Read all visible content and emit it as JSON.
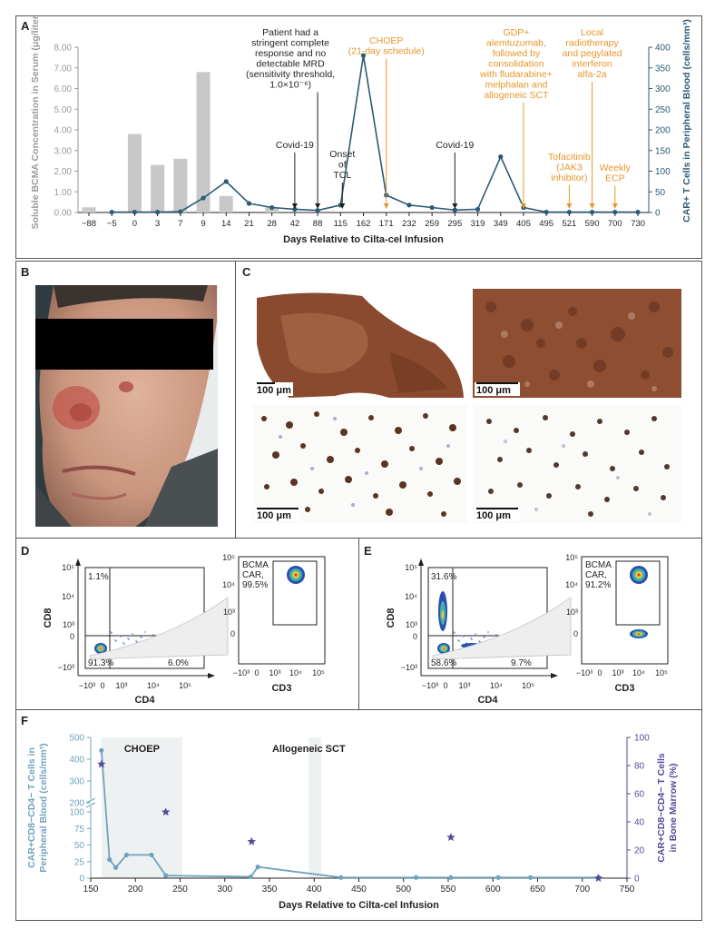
{
  "panels": {
    "A": "A",
    "B": "B",
    "C": "C",
    "D": "D",
    "E": "E",
    "F": "F"
  },
  "chart_data": [
    {
      "id": "A",
      "type": "bar+line",
      "xlabel": "Days Relative to Cilta-cel Infusion",
      "ylabel_left": "Soluble BCMA Concentration in Serum (μg/liter)",
      "ylabel_right": "CAR+ T Cells in Peripheral Blood (cells/mm³)",
      "categories": [
        "−88",
        "−5",
        "0",
        "3",
        "7",
        "9",
        "14",
        "21",
        "28",
        "42",
        "88",
        "115",
        "162",
        "171",
        "232",
        "259",
        "295",
        "319",
        "349",
        "405",
        "495",
        "521",
        "590",
        "700",
        "730"
      ],
      "ylim_left": [
        0,
        8.0
      ],
      "left_ticks": [
        "0.00",
        "1.00",
        "2.00",
        "3.00",
        "4.00",
        "5.00",
        "6.00",
        "7.00",
        "8.00"
      ],
      "ylim_right": [
        0,
        400
      ],
      "right_ticks": [
        "0",
        "50",
        "100",
        "150",
        "200",
        "250",
        "300",
        "350",
        "400"
      ],
      "series": [
        {
          "name": "Soluble BCMA",
          "kind": "bar",
          "axis": "left",
          "color": "#c8c8c8",
          "values": [
            0.25,
            null,
            3.8,
            2.3,
            2.6,
            6.8,
            0.8,
            null,
            0.25,
            null,
            null,
            null,
            null,
            null,
            null,
            null,
            null,
            null,
            null,
            null,
            null,
            null,
            null,
            null,
            null
          ]
        },
        {
          "name": "CAR+ T cells",
          "kind": "line",
          "axis": "right",
          "color": "#2b5a73",
          "values": [
            null,
            1,
            1,
            1,
            2,
            35,
            75,
            22,
            12,
            8,
            5,
            18,
            380,
            42,
            18,
            12,
            6,
            8,
            135,
            12,
            1,
            1,
            1,
            1,
            1
          ]
        }
      ],
      "annotations": [
        {
          "text": [
            "Covid-19"
          ],
          "x_cat": "42",
          "color": "#231f20"
        },
        {
          "text": [
            "Patient had a",
            "stringent complete",
            "response and no",
            "detectable MRD",
            "(sensitivity threshold,",
            "1.0×10⁻⁶)"
          ],
          "x_cat": "88",
          "color": "#231f20"
        },
        {
          "text": [
            "Onset",
            "of",
            "TCL"
          ],
          "x_cat": "115",
          "color": "#231f20"
        },
        {
          "text": [
            "CHOEP",
            "(21-day schedule)"
          ],
          "x_cat": "171",
          "color": "#e8962a"
        },
        {
          "text": [
            "Covid-19"
          ],
          "x_cat": "295",
          "color": "#231f20"
        },
        {
          "text": [
            "GDP+",
            "alemtuzumab,",
            "followed by",
            "consolidation",
            "with fludarabine+",
            "melphalan and",
            "allogeneic SCT"
          ],
          "x_cat": "405",
          "color": "#e8962a"
        },
        {
          "text": [
            "Tofacitinib",
            "(JAK3",
            "inhibitor)"
          ],
          "x_cat": "521",
          "color": "#e8962a"
        },
        {
          "text": [
            "Local",
            "radiotherapy",
            "and pegylated",
            "interferon",
            "alfa-2a"
          ],
          "x_cat": "590",
          "color": "#e8962a"
        },
        {
          "text": [
            "Weekly",
            "ECP"
          ],
          "x_cat": "700",
          "color": "#e8962a"
        }
      ]
    },
    {
      "id": "D",
      "type": "scatter",
      "plots": [
        {
          "xlabel": "CD4",
          "ylabel": "CD8",
          "quadrants": {
            "tl": "1.1%",
            "bl": "91.3%",
            "br": "6.0%"
          }
        },
        {
          "xlabel": "CD3",
          "ylabel": "",
          "gate_label": [
            "BCMA",
            "CAR,",
            "99.5%"
          ]
        }
      ]
    },
    {
      "id": "E",
      "type": "scatter",
      "plots": [
        {
          "xlabel": "CD4",
          "ylabel": "CD8",
          "quadrants": {
            "tl": "31.6%",
            "bl": "58.6%",
            "br": "9.7%"
          }
        },
        {
          "xlabel": "CD3",
          "ylabel": "",
          "gate_label": [
            "BCMA",
            "CAR,",
            "91.2%"
          ]
        }
      ]
    },
    {
      "id": "F",
      "type": "line+scatter",
      "xlabel": "Days Relative to Cilta-cel Infusion",
      "ylabel_left": "CAR+CD8−CD4− T Cells in Peripheral Blood (cells/mm³)",
      "ylabel_right": "CAR+CD8−CD4− T Cells in Bone Marrow (%)",
      "xlim": [
        150,
        750
      ],
      "x_ticks": [
        150,
        200,
        250,
        300,
        350,
        400,
        450,
        500,
        550,
        600,
        650,
        700,
        750
      ],
      "left_ticks": [
        0,
        25,
        50,
        75,
        100,
        200,
        300,
        400,
        500
      ],
      "right_ticks": [
        0,
        20,
        40,
        60,
        80,
        100
      ],
      "shaded": [
        {
          "label": "CHOEP",
          "from": 162,
          "to": 252
        },
        {
          "label": "Allogeneic SCT",
          "from": 394,
          "to": 408
        }
      ],
      "series": [
        {
          "name": "Peripheral blood",
          "kind": "line",
          "axis": "left",
          "color": "#6fa3bd",
          "points": [
            [
              162,
              440
            ],
            [
              171,
              28
            ],
            [
              178,
              16
            ],
            [
              190,
              35
            ],
            [
              218,
              35
            ],
            [
              234,
              4
            ],
            [
              329,
              2
            ],
            [
              337,
              17
            ],
            [
              430,
              1
            ],
            [
              514,
              1
            ],
            [
              553,
              1
            ],
            [
              606,
              1
            ],
            [
              642,
              1
            ],
            [
              718,
              1
            ]
          ]
        },
        {
          "name": "Bone marrow",
          "kind": "scatter",
          "axis": "right",
          "color": "#514b9a",
          "marker": "star",
          "points": [
            [
              162,
              81
            ],
            [
              234,
              47
            ],
            [
              330,
              26
            ],
            [
              553,
              29
            ],
            [
              718,
              0
            ]
          ]
        }
      ]
    }
  ],
  "micro": {
    "scale_label": "100 μm"
  }
}
